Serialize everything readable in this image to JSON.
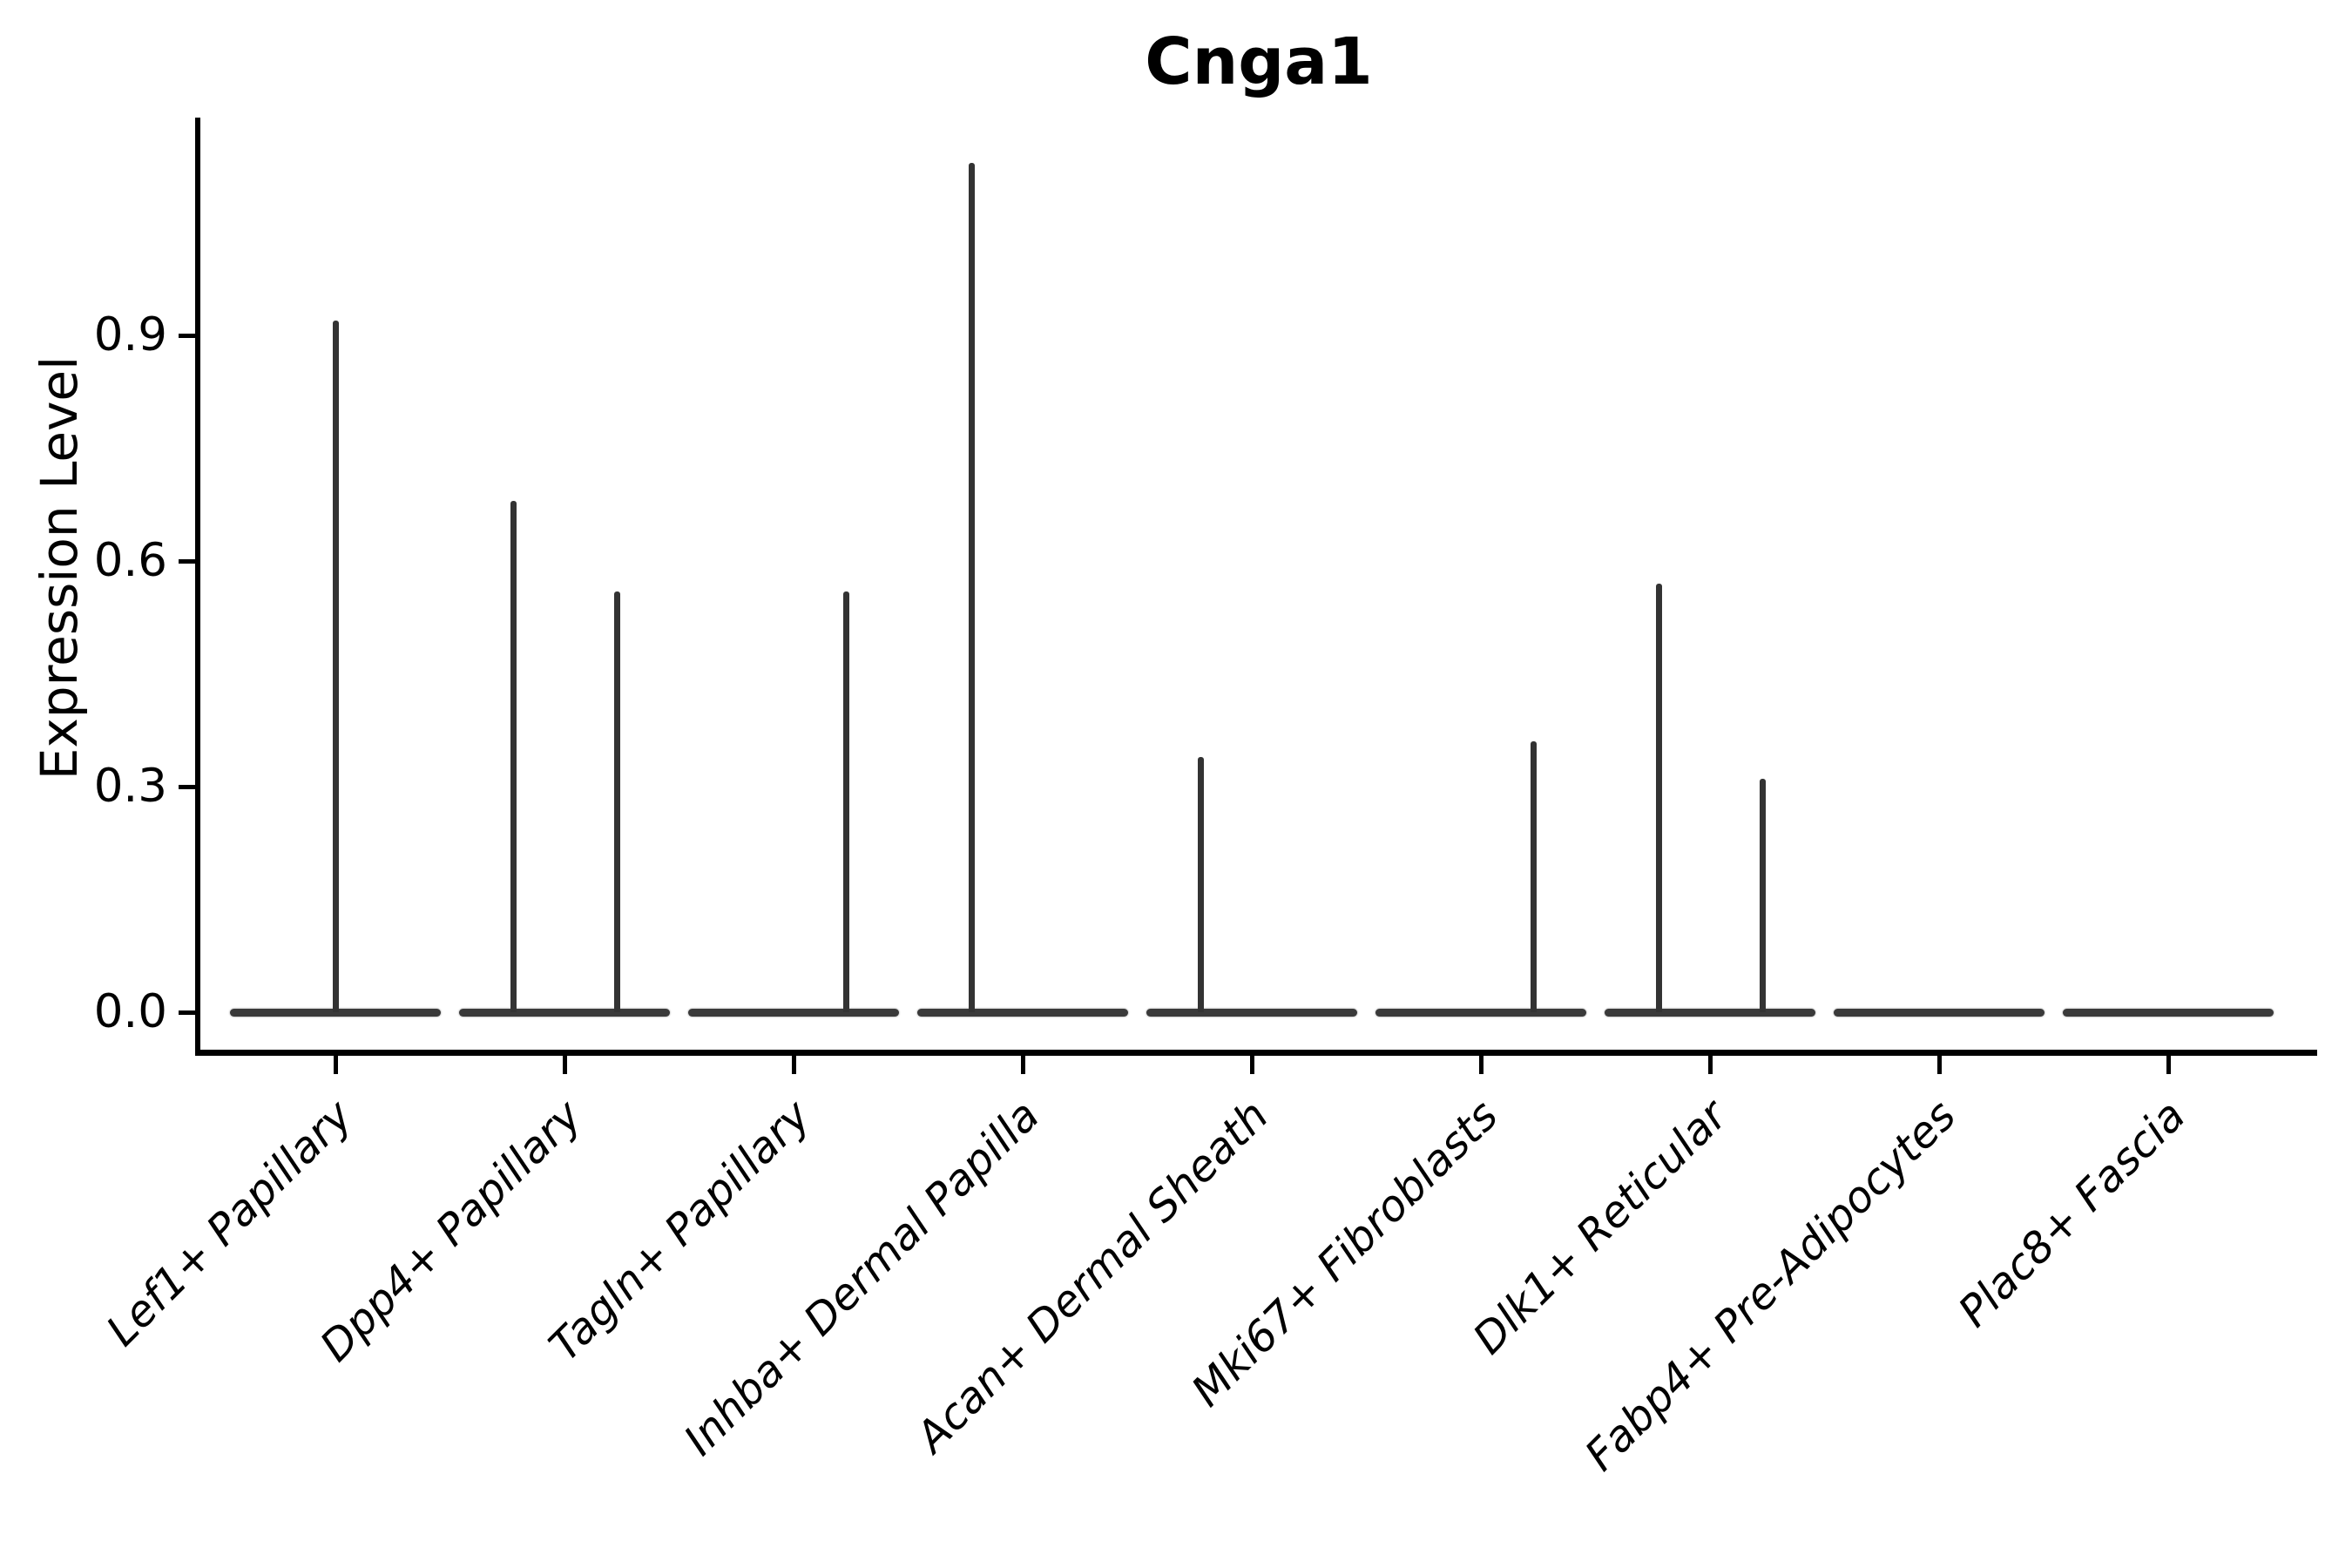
{
  "title": "Cnga1",
  "axes": {
    "ylabel": "Expression Level",
    "ytick_labels": [
      "0.0",
      "0.3",
      "0.6",
      "0.9"
    ]
  },
  "chart_data": {
    "type": "violin",
    "title": "Cnga1",
    "xlabel": "",
    "ylabel": "Expression Level",
    "ylim": [
      0,
      1.19
    ],
    "yticks": [
      0.0,
      0.3,
      0.6,
      0.9
    ],
    "grid": false,
    "legend": "none",
    "line_color": "#333333",
    "categories": [
      "Lef1+ Papillary",
      "Dpp4+ Papillary",
      "Tagln+ Papillary",
      "Inhba+ Dermal Papilla",
      "Acan+ Dermal Sheath",
      "Mki67+ Fibroblasts",
      "Dlk1+ Reticular",
      "Fabp4+ Pre-Adipocytes",
      "Plac8+ Fascia"
    ],
    "violins": [
      {
        "category": "Lef1+ Papillary",
        "base_value": 0.0,
        "spikes": [
          {
            "position": "center",
            "max": 0.92
          }
        ]
      },
      {
        "category": "Dpp4+ Papillary",
        "base_value": 0.0,
        "spikes": [
          {
            "position": "left",
            "max": 0.68
          },
          {
            "position": "right",
            "max": 0.56
          }
        ]
      },
      {
        "category": "Tagln+ Papillary",
        "base_value": 0.0,
        "spikes": [
          {
            "position": "right",
            "max": 0.56
          }
        ]
      },
      {
        "category": "Inhba+ Dermal Papilla",
        "base_value": 0.0,
        "spikes": [
          {
            "position": "left",
            "max": 1.13
          }
        ]
      },
      {
        "category": "Acan+ Dermal Sheath",
        "base_value": 0.0,
        "spikes": [
          {
            "position": "left",
            "max": 0.34
          }
        ]
      },
      {
        "category": "Mki67+ Fibroblasts",
        "base_value": 0.0,
        "spikes": [
          {
            "position": "right",
            "max": 0.36
          }
        ]
      },
      {
        "category": "Dlk1+ Reticular",
        "base_value": 0.0,
        "spikes": [
          {
            "position": "left",
            "max": 0.57
          },
          {
            "position": "right",
            "max": 0.31
          }
        ]
      },
      {
        "category": "Fabp4+ Pre-Adipocytes",
        "base_value": 0.0,
        "spikes": []
      },
      {
        "category": "Plac8+ Fascia",
        "base_value": 0.0,
        "spikes": []
      }
    ]
  }
}
